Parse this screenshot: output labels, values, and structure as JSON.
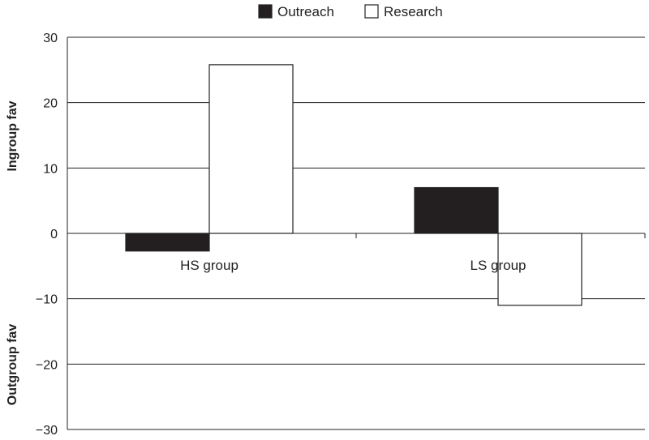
{
  "chart_data": {
    "type": "bar",
    "categories": [
      "HS group",
      "LS group"
    ],
    "series": [
      {
        "name": "Outreach",
        "values": [
          -2.7,
          7
        ],
        "color": "#231f20"
      },
      {
        "name": "Research",
        "values": [
          25.8,
          -11
        ],
        "color": "#ffffff"
      }
    ],
    "ylim": [
      -30,
      30
    ],
    "yticks": [
      30,
      20,
      10,
      0,
      -10,
      -20,
      -30
    ],
    "ytick_labels": [
      "30",
      "20",
      "10",
      "0",
      "−10",
      "−20",
      "−30"
    ],
    "ylabel_positive": "Ingroup fav",
    "ylabel_negative": "Outgroup fav",
    "grid": true,
    "legend_position": "top-center"
  }
}
